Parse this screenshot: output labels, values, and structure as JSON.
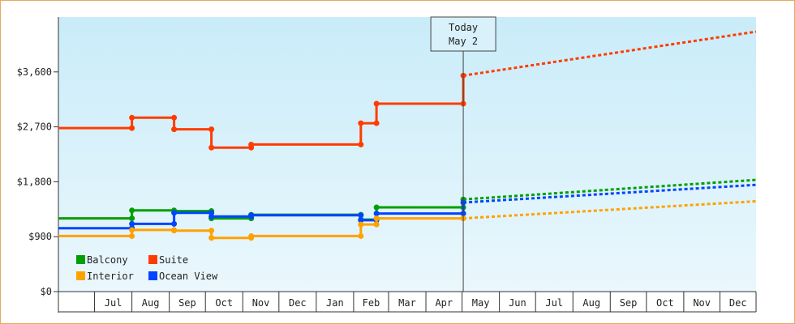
{
  "chart_data": {
    "type": "line",
    "title": "",
    "xlabel": "",
    "ylabel": "",
    "ylim": [
      0,
      4500
    ],
    "y_ticks": [
      0,
      900,
      1800,
      2700,
      3600
    ],
    "y_tick_labels": [
      "$0",
      "$900",
      "$1,800",
      "$2,700",
      "$3,600"
    ],
    "x_range": [
      "2023-06-01",
      "2024-12-31"
    ],
    "x_month_labels": [
      {
        "month": "2023-07",
        "label": "Jul"
      },
      {
        "month": "2023-08",
        "label": "Aug"
      },
      {
        "month": "2023-09",
        "label": "Sep"
      },
      {
        "month": "2023-10",
        "label": "Oct"
      },
      {
        "month": "2023-11",
        "label": "Nov"
      },
      {
        "month": "2023-12",
        "label": "Dec"
      },
      {
        "month": "2024-01",
        "label": "Jan"
      },
      {
        "month": "2024-02",
        "label": "Feb"
      },
      {
        "month": "2024-03",
        "label": "Mar"
      },
      {
        "month": "2024-04",
        "label": "Apr"
      },
      {
        "month": "2024-05",
        "label": "May"
      },
      {
        "month": "2024-06",
        "label": "Jun"
      },
      {
        "month": "2024-07",
        "label": "Jul"
      },
      {
        "month": "2024-08",
        "label": "Aug"
      },
      {
        "month": "2024-09",
        "label": "Sep"
      },
      {
        "month": "2024-10",
        "label": "Oct"
      },
      {
        "month": "2024-11",
        "label": "Nov"
      },
      {
        "month": "2024-12",
        "label": "Dec"
      }
    ],
    "today": {
      "date": "2024-05-02",
      "label_line1": "Today",
      "label_line2": "May 2"
    },
    "grid": false,
    "legend_position": "bottom-left",
    "background_gradient": {
      "top": "#c9ecf9",
      "bottom": "#eaf7fc"
    },
    "series": [
      {
        "name": "Suite",
        "color": "#ff3c00",
        "points": [
          {
            "x": "2023-06-01",
            "y": 2680
          },
          {
            "x": "2023-08-01",
            "y": 2680
          },
          {
            "x": "2023-08-01",
            "y": 2850
          },
          {
            "x": "2023-09-05",
            "y": 2850
          },
          {
            "x": "2023-09-05",
            "y": 2660
          },
          {
            "x": "2023-10-06",
            "y": 2660
          },
          {
            "x": "2023-10-06",
            "y": 2360
          },
          {
            "x": "2023-11-08",
            "y": 2360
          },
          {
            "x": "2023-11-08",
            "y": 2410
          },
          {
            "x": "2024-02-07",
            "y": 2410
          },
          {
            "x": "2024-02-07",
            "y": 2760
          },
          {
            "x": "2024-02-20",
            "y": 2760
          },
          {
            "x": "2024-02-20",
            "y": 3080
          },
          {
            "x": "2024-05-02",
            "y": 3080
          },
          {
            "x": "2024-05-02",
            "y": 3540
          }
        ],
        "forecast": [
          {
            "x": "2024-05-02",
            "y": 3540
          },
          {
            "x": "2024-12-31",
            "y": 4260
          }
        ]
      },
      {
        "name": "Balcony",
        "color": "#00a000",
        "points": [
          {
            "x": "2023-06-01",
            "y": 1200
          },
          {
            "x": "2023-08-01",
            "y": 1200
          },
          {
            "x": "2023-08-01",
            "y": 1330
          },
          {
            "x": "2023-09-05",
            "y": 1330
          },
          {
            "x": "2023-09-05",
            "y": 1320
          },
          {
            "x": "2023-10-06",
            "y": 1320
          },
          {
            "x": "2023-10-06",
            "y": 1200
          },
          {
            "x": "2023-11-08",
            "y": 1200
          },
          {
            "x": "2023-11-08",
            "y": 1260
          },
          {
            "x": "2024-02-07",
            "y": 1260
          },
          {
            "x": "2024-02-07",
            "y": 1180
          },
          {
            "x": "2024-02-20",
            "y": 1180
          },
          {
            "x": "2024-02-20",
            "y": 1380
          },
          {
            "x": "2024-05-02",
            "y": 1380
          },
          {
            "x": "2024-05-02",
            "y": 1510
          }
        ],
        "forecast": [
          {
            "x": "2024-05-02",
            "y": 1510
          },
          {
            "x": "2024-12-31",
            "y": 1830
          }
        ]
      },
      {
        "name": "Ocean View",
        "color": "#0044ff",
        "points": [
          {
            "x": "2023-06-01",
            "y": 1040
          },
          {
            "x": "2023-08-01",
            "y": 1040
          },
          {
            "x": "2023-08-01",
            "y": 1110
          },
          {
            "x": "2023-09-05",
            "y": 1110
          },
          {
            "x": "2023-09-05",
            "y": 1290
          },
          {
            "x": "2023-10-06",
            "y": 1290
          },
          {
            "x": "2023-10-06",
            "y": 1230
          },
          {
            "x": "2023-11-08",
            "y": 1230
          },
          {
            "x": "2023-11-08",
            "y": 1250
          },
          {
            "x": "2024-02-07",
            "y": 1250
          },
          {
            "x": "2024-02-07",
            "y": 1170
          },
          {
            "x": "2024-02-20",
            "y": 1170
          },
          {
            "x": "2024-02-20",
            "y": 1280
          },
          {
            "x": "2024-05-02",
            "y": 1280
          },
          {
            "x": "2024-05-02",
            "y": 1460
          }
        ],
        "forecast": [
          {
            "x": "2024-05-02",
            "y": 1460
          },
          {
            "x": "2024-12-31",
            "y": 1750
          }
        ]
      },
      {
        "name": "Interior",
        "color": "#ffa200",
        "points": [
          {
            "x": "2023-06-01",
            "y": 910
          },
          {
            "x": "2023-08-01",
            "y": 910
          },
          {
            "x": "2023-08-01",
            "y": 1010
          },
          {
            "x": "2023-09-05",
            "y": 1010
          },
          {
            "x": "2023-09-05",
            "y": 1000
          },
          {
            "x": "2023-10-06",
            "y": 1000
          },
          {
            "x": "2023-10-06",
            "y": 880
          },
          {
            "x": "2023-11-08",
            "y": 880
          },
          {
            "x": "2023-11-08",
            "y": 910
          },
          {
            "x": "2024-02-07",
            "y": 910
          },
          {
            "x": "2024-02-07",
            "y": 1100
          },
          {
            "x": "2024-02-20",
            "y": 1100
          },
          {
            "x": "2024-02-20",
            "y": 1200
          },
          {
            "x": "2024-05-02",
            "y": 1200
          }
        ],
        "forecast": [
          {
            "x": "2024-05-02",
            "y": 1200
          },
          {
            "x": "2024-12-31",
            "y": 1480
          }
        ]
      }
    ],
    "legend": [
      {
        "label": "Balcony",
        "color": "#00a000"
      },
      {
        "label": "Suite",
        "color": "#ff3c00"
      },
      {
        "label": "Interior",
        "color": "#ffa200"
      },
      {
        "label": "Ocean View",
        "color": "#0044ff"
      }
    ]
  }
}
